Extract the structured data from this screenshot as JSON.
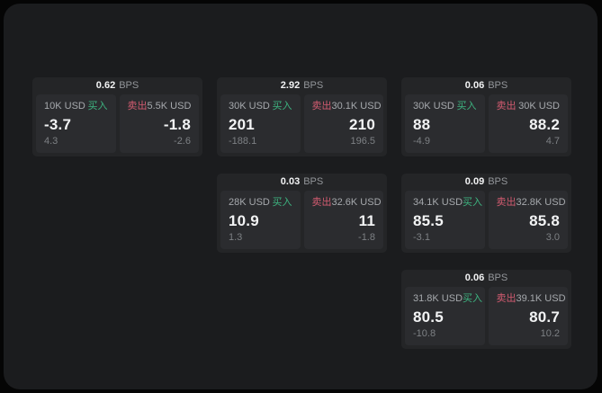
{
  "labels": {
    "bps_unit": "BPS",
    "buy": "买入",
    "sell": "卖出"
  },
  "theme": {
    "outer_bg": "#050505",
    "window_bg": "#1b1c1e",
    "card_bg": "#242527",
    "panel_bg": "#2b2c2f",
    "buy_color": "#3db480",
    "sell_color": "#d25b70",
    "text_primary": "#f2f3f4",
    "text_secondary": "#93969a",
    "text_amount": "#a6a9ad",
    "text_muted": "#7d8084"
  },
  "cards": [
    {
      "bps": "0.62",
      "buy": {
        "amount": "10K USD",
        "price": "-3.7",
        "delta": "4.3"
      },
      "sell": {
        "amount": "5.5K USD",
        "price": "-1.8",
        "delta": "-2.6"
      }
    },
    {
      "bps": "2.92",
      "buy": {
        "amount": "30K USD",
        "price": "201",
        "delta": "-188.1"
      },
      "sell": {
        "amount": "30.1K USD",
        "price": "210",
        "delta": "196.5"
      }
    },
    {
      "bps": "0.06",
      "buy": {
        "amount": "30K USD",
        "price": "88",
        "delta": "-4.9"
      },
      "sell": {
        "amount": "30K USD",
        "price": "88.2",
        "delta": "4.7"
      }
    },
    {
      "bps": "0.03",
      "buy": {
        "amount": "28K USD",
        "price": "10.9",
        "delta": "1.3"
      },
      "sell": {
        "amount": "32.6K USD",
        "price": "11",
        "delta": "-1.8"
      }
    },
    {
      "bps": "0.09",
      "buy": {
        "amount": "34.1K USD",
        "price": "85.5",
        "delta": "-3.1"
      },
      "sell": {
        "amount": "32.8K USD",
        "price": "85.8",
        "delta": "3.0"
      }
    },
    {
      "bps": "0.06",
      "buy": {
        "amount": "31.8K USD",
        "price": "80.5",
        "delta": "-10.8"
      },
      "sell": {
        "amount": "39.1K USD",
        "price": "80.7",
        "delta": "10.2"
      }
    }
  ]
}
